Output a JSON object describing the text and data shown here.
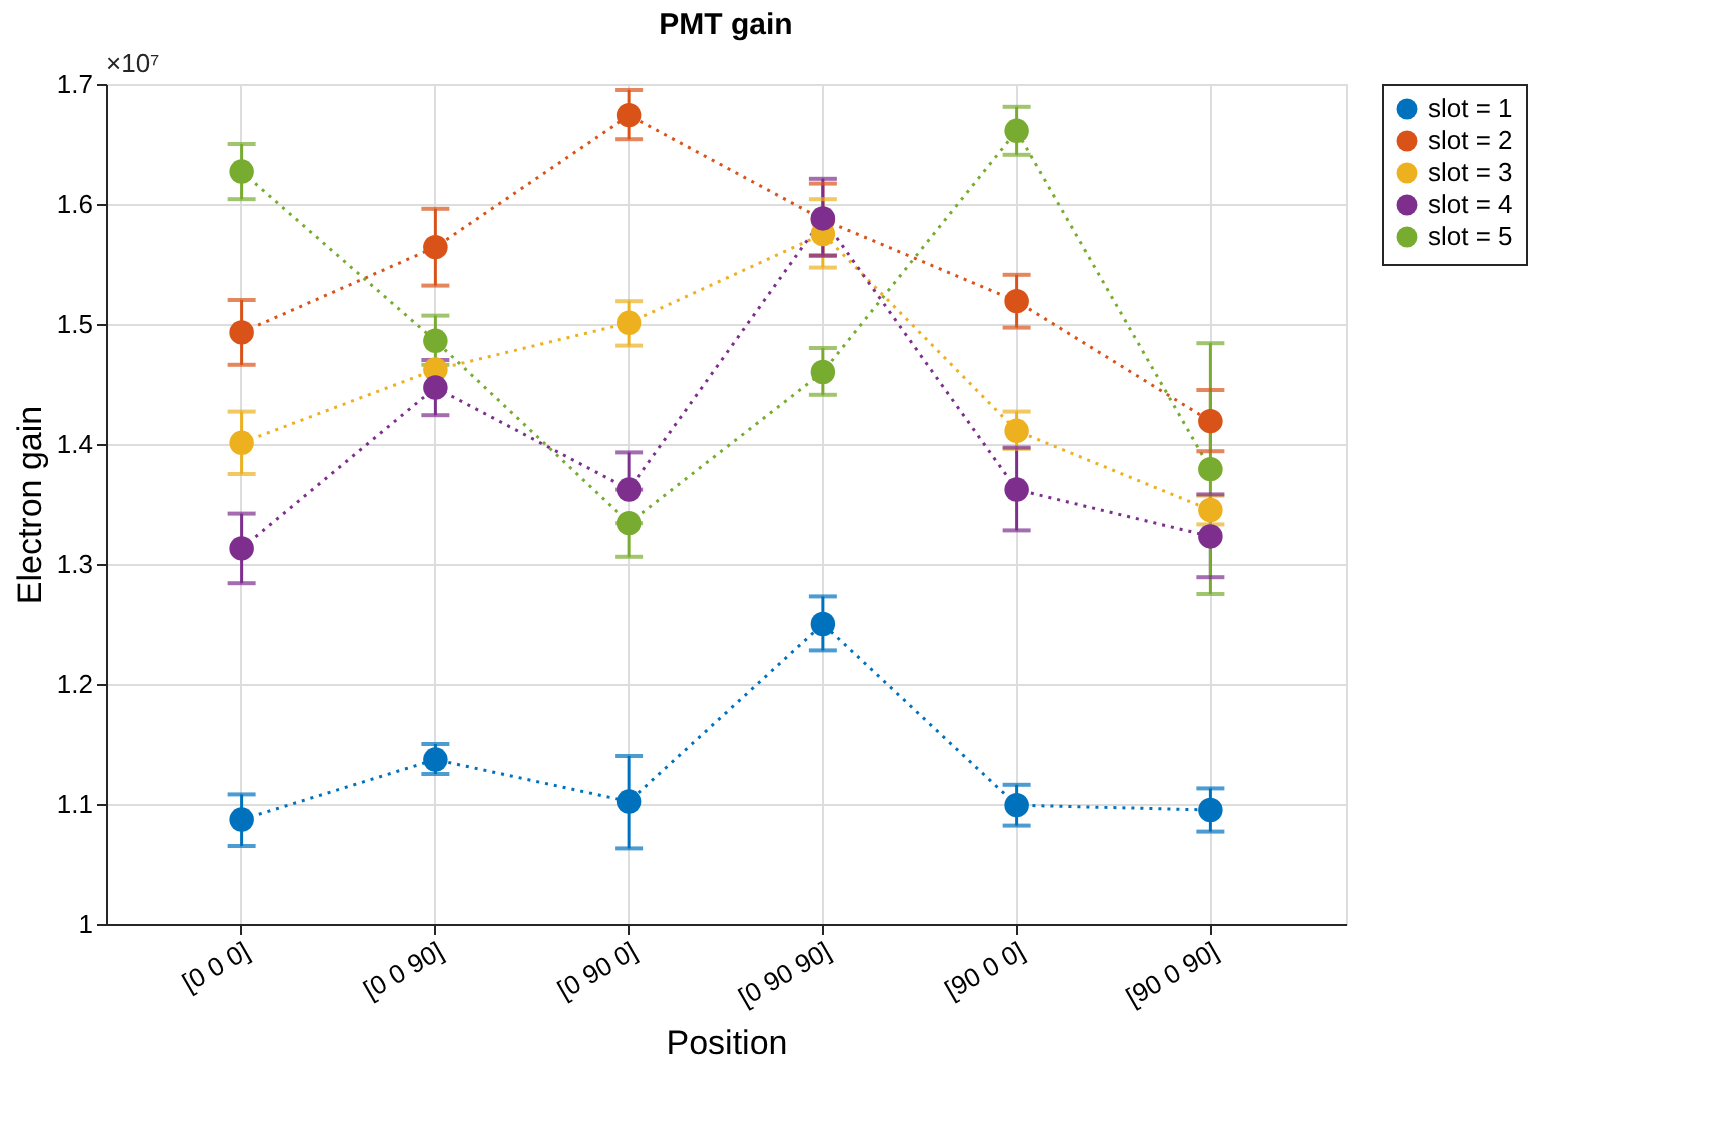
{
  "chart_data": {
    "type": "line",
    "title": "PMT gain",
    "xlabel": "Position",
    "ylabel": "Electron gain",
    "annotations": [
      "×10⁷"
    ],
    "categories": [
      "[0 0 0]",
      "[0 0 90]",
      "[0 90 0]",
      "[0 90 90]",
      "[90 0 0]",
      "[90 0 90]"
    ],
    "ylim": [
      1,
      1.7
    ],
    "yticks": [
      1,
      1.1,
      1.2,
      1.3,
      1.4,
      1.5,
      1.6,
      1.7
    ],
    "grid": true,
    "legend": "right",
    "marker": "circle",
    "line_style": "dotted",
    "series": [
      {
        "name": "slot = 1",
        "color": "#0072bd",
        "values": [
          1.087,
          1.137,
          1.102,
          1.25,
          1.099,
          1.095
        ],
        "errors": [
          [
            1.065,
            1.108
          ],
          [
            1.125,
            1.15
          ],
          [
            1.063,
            1.14
          ],
          [
            1.228,
            1.273
          ],
          [
            1.082,
            1.116
          ],
          [
            1.077,
            1.113
          ]
        ]
      },
      {
        "name": "slot = 2",
        "color": "#d95319",
        "values": [
          1.493,
          1.564,
          1.674,
          1.587,
          1.519,
          1.419
        ],
        "errors": [
          [
            1.466,
            1.52
          ],
          [
            1.532,
            1.596
          ],
          [
            1.654,
            1.695
          ],
          [
            1.557,
            1.617
          ],
          [
            1.497,
            1.541
          ],
          [
            1.394,
            1.445
          ]
        ]
      },
      {
        "name": "slot = 3",
        "color": "#edb120",
        "values": [
          1.401,
          1.462,
          1.501,
          1.575,
          1.411,
          1.345
        ],
        "errors": [
          [
            1.375,
            1.427
          ],
          null,
          [
            1.482,
            1.519
          ],
          [
            1.547,
            1.604
          ],
          [
            1.396,
            1.427
          ],
          [
            1.333,
            1.357
          ]
        ]
      },
      {
        "name": "slot = 4",
        "color": "#7e2f8e",
        "values": [
          1.313,
          1.447,
          1.362,
          1.588,
          1.362,
          1.323
        ],
        "errors": [
          [
            1.284,
            1.342
          ],
          [
            1.424,
            1.47
          ],
          [
            1.362,
            1.393
          ],
          [
            1.557,
            1.621
          ],
          [
            1.328,
            1.397
          ],
          [
            1.289,
            1.358
          ]
        ]
      },
      {
        "name": "slot = 5",
        "color": "#77ac30",
        "values": [
          1.627,
          1.486,
          1.334,
          1.46,
          1.661,
          1.379
        ],
        "errors": [
          [
            1.604,
            1.65
          ],
          [
            1.466,
            1.507
          ],
          [
            1.306,
            1.334
          ],
          [
            1.441,
            1.48
          ],
          [
            1.641,
            1.681
          ],
          [
            1.275,
            1.484
          ]
        ]
      }
    ]
  }
}
